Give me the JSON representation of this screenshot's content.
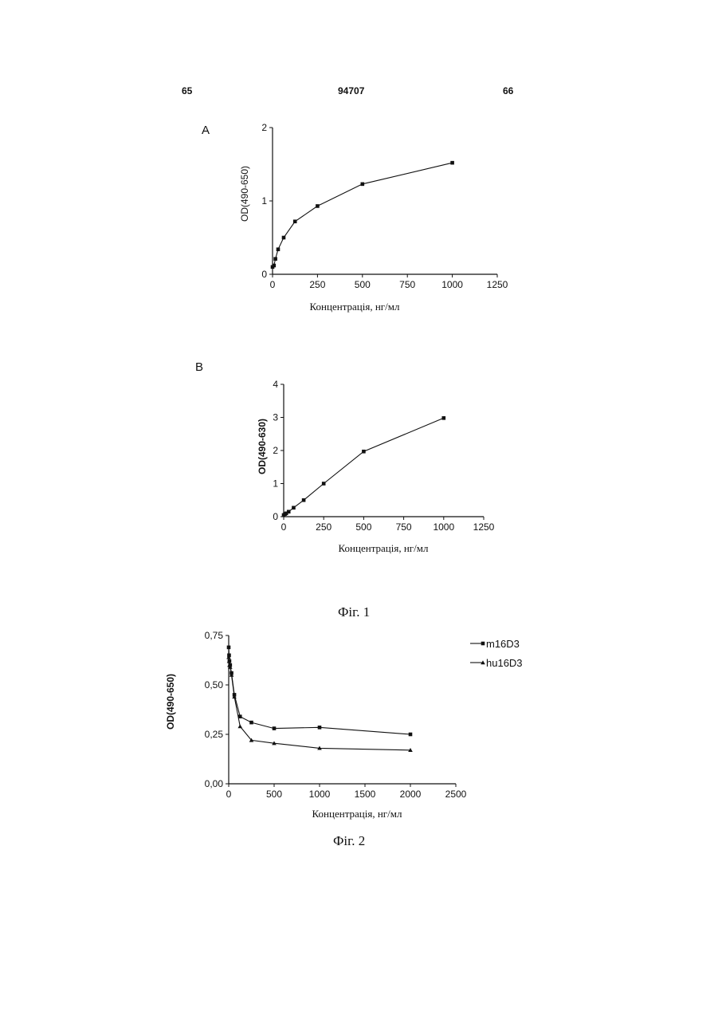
{
  "header": {
    "left": "65",
    "center": "94707",
    "right": "66"
  },
  "figures": {
    "fig1_caption": "Фіг. 1",
    "fig2_caption": "Фіг. 2"
  },
  "chart_data": [
    {
      "type": "line",
      "panel": "A",
      "title": "",
      "xlabel": "Концентрація, нг/мл",
      "ylabel": "OD(490-650)",
      "xlim": [
        0,
        1250
      ],
      "ylim": [
        0,
        2
      ],
      "xticks": [
        0,
        250,
        500,
        750,
        1000,
        1250
      ],
      "yticks": [
        0,
        1,
        2
      ],
      "xtick_labels": [
        "0",
        "250",
        "500",
        "750",
        "1000",
        "1250"
      ],
      "ytick_labels": [
        "0",
        "1",
        "2"
      ],
      "grid": false,
      "series": [
        {
          "marker": "square",
          "x": [
            0,
            8,
            16,
            31,
            62,
            125,
            250,
            500,
            1000
          ],
          "y": [
            0.1,
            0.12,
            0.21,
            0.34,
            0.5,
            0.72,
            0.93,
            1.23,
            1.52
          ]
        }
      ]
    },
    {
      "type": "line",
      "panel": "B",
      "title": "",
      "xlabel": "Концентрація, нг/мл",
      "ylabel": "OD(490-630)",
      "xlim": [
        0,
        1250
      ],
      "ylim": [
        0,
        4
      ],
      "xticks": [
        0,
        250,
        500,
        750,
        1000,
        1250
      ],
      "yticks": [
        0,
        1,
        2,
        3,
        4
      ],
      "xtick_labels": [
        "0",
        "250",
        "500",
        "750",
        "1000",
        "1250"
      ],
      "ytick_labels": [
        "0",
        "1",
        "2",
        "3",
        "4"
      ],
      "grid": false,
      "series": [
        {
          "marker": "square",
          "x": [
            0,
            8,
            16,
            31,
            62,
            125,
            250,
            500,
            1000
          ],
          "y": [
            0.05,
            0.08,
            0.1,
            0.15,
            0.27,
            0.5,
            1.0,
            1.97,
            2.98
          ]
        }
      ]
    },
    {
      "type": "line",
      "title": "",
      "xlabel": "Концентрація, нг/мл",
      "ylabel": "OD(490-650)",
      "xlim": [
        0,
        2500
      ],
      "ylim": [
        0,
        0.75
      ],
      "xticks": [
        0,
        500,
        1000,
        1500,
        2000,
        2500
      ],
      "yticks": [
        0,
        0.25,
        0.5,
        0.75
      ],
      "xtick_labels": [
        "0",
        "500",
        "1000",
        "1500",
        "2000",
        "2500"
      ],
      "ytick_labels": [
        "0,00",
        "0,25",
        "0,50",
        "0,75"
      ],
      "grid": false,
      "legend": "top-right",
      "series": [
        {
          "name": "m16D3",
          "marker": "square",
          "x": [
            0,
            4,
            8,
            16,
            31,
            62,
            125,
            250,
            500,
            1000,
            2000
          ],
          "y": [
            0.69,
            0.65,
            0.62,
            0.6,
            0.56,
            0.45,
            0.34,
            0.31,
            0.28,
            0.285,
            0.25
          ]
        },
        {
          "name": "hu16D3",
          "marker": "triangle",
          "x": [
            0,
            4,
            8,
            16,
            31,
            62,
            125,
            250,
            500,
            1000,
            2000
          ],
          "y": [
            0.64,
            0.62,
            0.6,
            0.59,
            0.55,
            0.44,
            0.29,
            0.22,
            0.205,
            0.18,
            0.17
          ]
        }
      ]
    }
  ],
  "colors": {
    "ink": "#111111",
    "background": "#ffffff"
  }
}
